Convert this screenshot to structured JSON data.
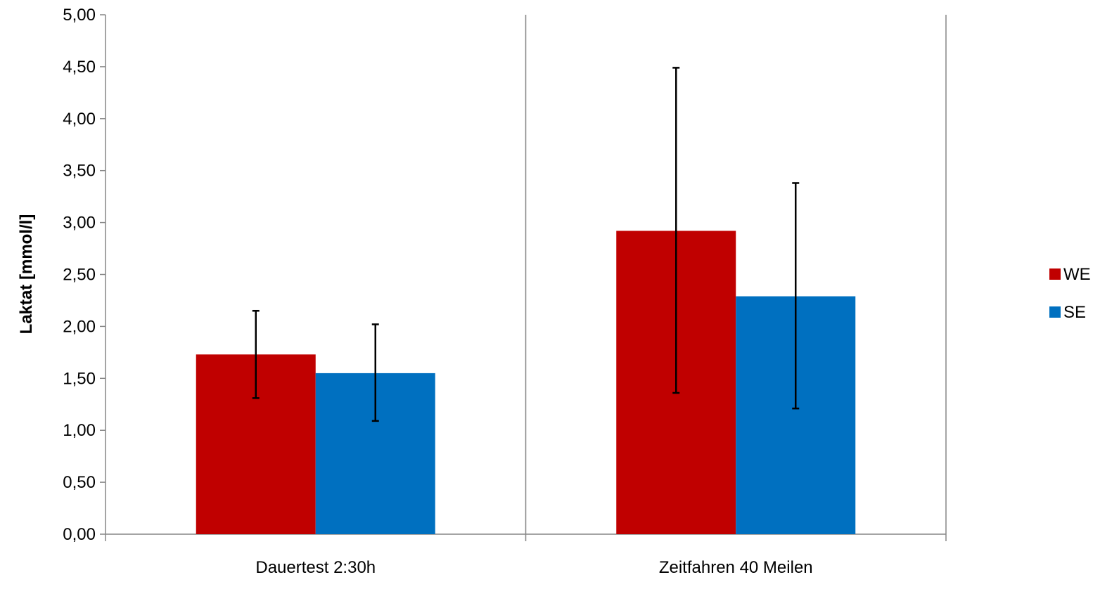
{
  "chart_data": {
    "type": "bar",
    "title": "",
    "xlabel": "",
    "ylabel": "Laktat [mmol/l]",
    "ylim": [
      0,
      5
    ],
    "ytick_step": 0.5,
    "ytick_labels": [
      "0,00",
      "0,50",
      "1,00",
      "1,50",
      "2,00",
      "2,50",
      "3,00",
      "3,50",
      "4,00",
      "4,50",
      "5,00"
    ],
    "categories": [
      "Dauertest 2:30h",
      "Zeitfahren 40 Meilen"
    ],
    "series": [
      {
        "name": "WE",
        "color": "#c00000",
        "values": [
          1.73,
          2.92
        ],
        "error_low": [
          1.31,
          1.36
        ],
        "error_high": [
          2.15,
          4.49
        ]
      },
      {
        "name": "SE",
        "color": "#0070c0",
        "values": [
          1.55,
          2.29
        ],
        "error_low": [
          1.09,
          1.21
        ],
        "error_high": [
          2.02,
          3.38
        ]
      }
    ],
    "grid": false,
    "legend_position": "right"
  }
}
